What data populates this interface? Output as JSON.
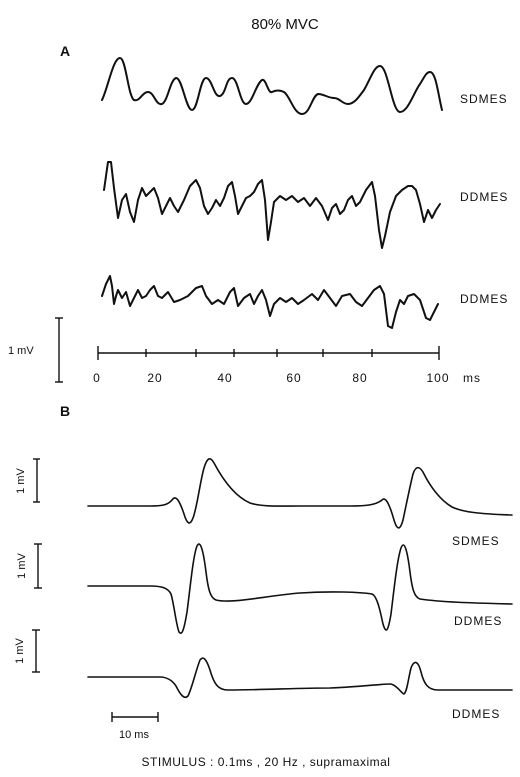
{
  "title": "80% MVC",
  "panel_a": {
    "label": "A",
    "traces": [
      {
        "label": "SDMES"
      },
      {
        "label": "DDMES"
      },
      {
        "label": "DDMES"
      }
    ],
    "amplitude_scale_label": "1 mV",
    "time_axis": {
      "ticks": [
        "0",
        "20",
        "40",
        "60",
        "80",
        "100"
      ],
      "unit": "ms"
    }
  },
  "panel_b": {
    "label": "B",
    "traces": [
      {
        "label": "SDMES",
        "scale_label": "1 mV"
      },
      {
        "label": "DDMES",
        "scale_label": "1 mV"
      },
      {
        "label": "DDMES",
        "scale_label": "1 mV"
      }
    ],
    "time_scale_label": "10 ms"
  },
  "stimulus_caption": "STIMULUS : 0.1ms , 20 Hz , supramaximal"
}
